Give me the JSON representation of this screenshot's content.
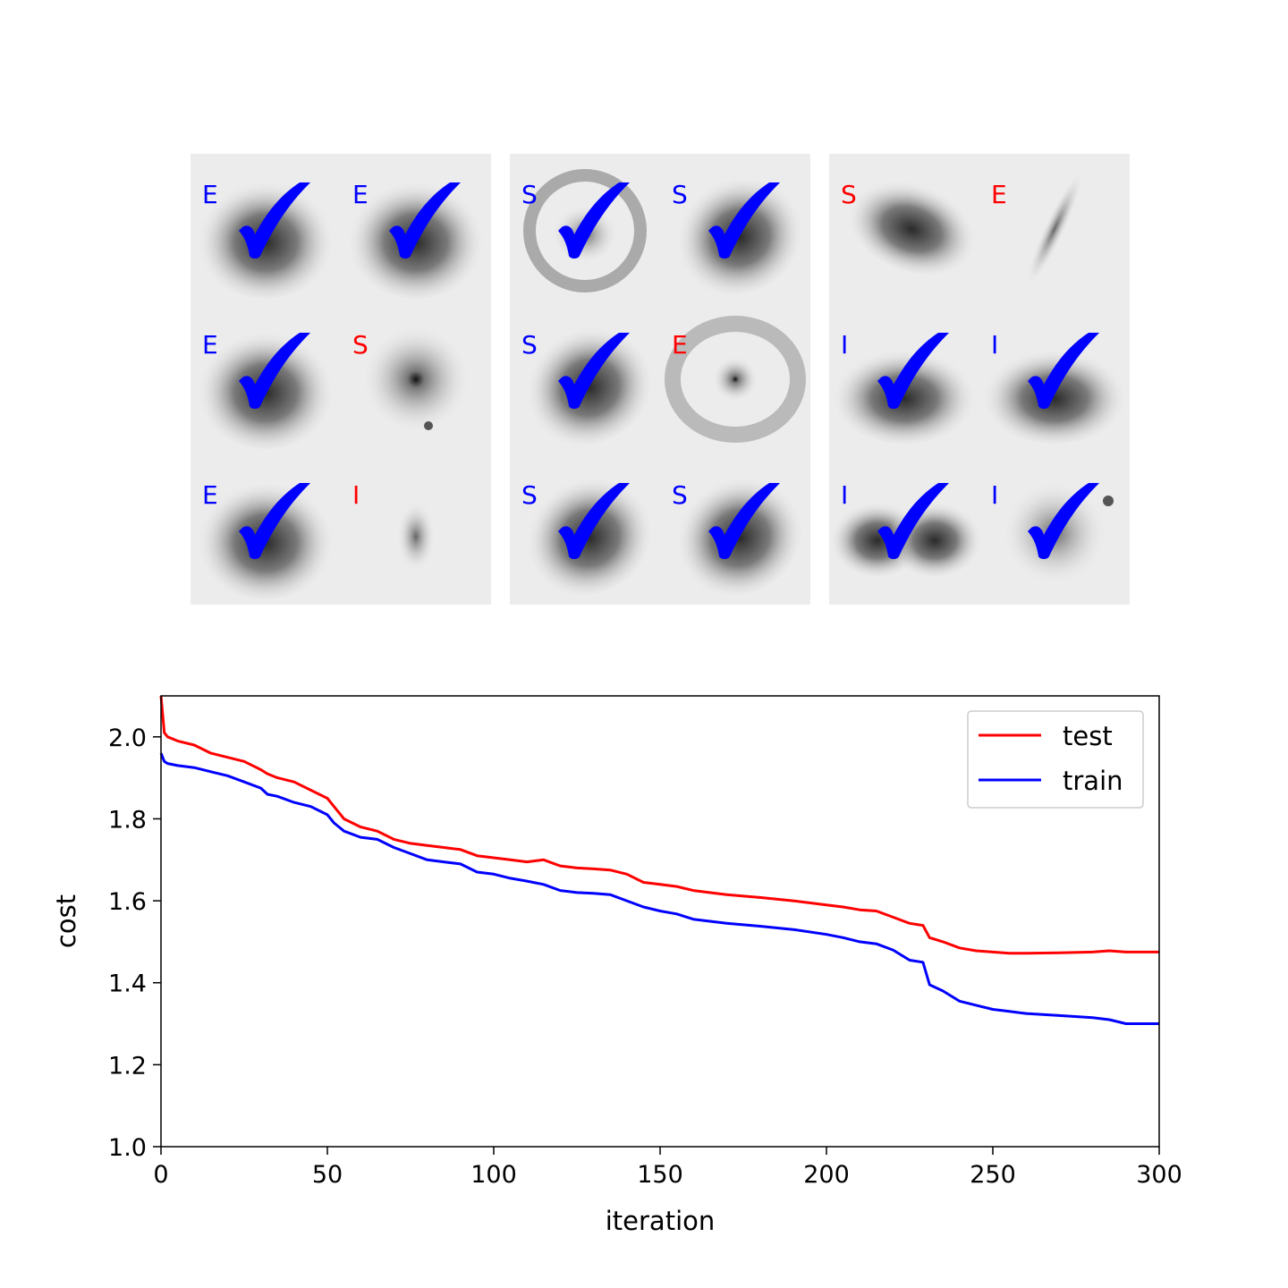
{
  "image_grid": {
    "correct_color": "#0000ff",
    "incorrect_color": "#ff0000",
    "rows": [
      [
        {
          "label": "E",
          "correct": true,
          "galaxy": "elliptical"
        },
        {
          "label": "E",
          "correct": true,
          "galaxy": "elliptical"
        },
        {
          "label": "S",
          "correct": true,
          "galaxy": "ring-spiral"
        },
        {
          "label": "S",
          "correct": true,
          "galaxy": "spiral"
        },
        {
          "label": "S",
          "correct": false,
          "galaxy": "elongated"
        },
        {
          "label": "E",
          "correct": false,
          "galaxy": "edge-on"
        }
      ],
      [
        {
          "label": "E",
          "correct": true,
          "galaxy": "elliptical"
        },
        {
          "label": "S",
          "correct": false,
          "galaxy": "compact"
        },
        {
          "label": "S",
          "correct": true,
          "galaxy": "spiral"
        },
        {
          "label": "E",
          "correct": false,
          "galaxy": "barred-spiral"
        },
        {
          "label": "I",
          "correct": true,
          "galaxy": "diffuse"
        },
        {
          "label": "I",
          "correct": true,
          "galaxy": "diffuse"
        }
      ],
      [
        {
          "label": "E",
          "correct": true,
          "galaxy": "elliptical"
        },
        {
          "label": "I",
          "correct": false,
          "galaxy": "faint"
        },
        {
          "label": "S",
          "correct": true,
          "galaxy": "spiral"
        },
        {
          "label": "S",
          "correct": true,
          "galaxy": "spiral"
        },
        {
          "label": "I",
          "correct": true,
          "galaxy": "double"
        },
        {
          "label": "I",
          "correct": true,
          "galaxy": "irregular"
        }
      ]
    ]
  },
  "chart_data": {
    "type": "line",
    "xlabel": "iteration",
    "ylabel": "cost",
    "xlim": [
      0,
      300
    ],
    "ylim": [
      1.0,
      2.1
    ],
    "xticks": [
      0,
      50,
      100,
      150,
      200,
      250,
      300
    ],
    "yticks": [
      1.0,
      1.2,
      1.4,
      1.6,
      1.8,
      2.0
    ],
    "ytick_labels": [
      "1.0",
      "1.2",
      "1.4",
      "1.6",
      "1.8",
      "2.0"
    ],
    "legend_position": "top-right",
    "grid": false,
    "series": [
      {
        "name": "test",
        "color": "#ff0000",
        "x": [
          0,
          1,
          2,
          5,
          10,
          15,
          20,
          25,
          30,
          32,
          35,
          40,
          45,
          50,
          52,
          55,
          60,
          65,
          70,
          75,
          80,
          85,
          90,
          95,
          100,
          105,
          110,
          115,
          120,
          125,
          130,
          135,
          140,
          145,
          150,
          155,
          160,
          170,
          180,
          190,
          200,
          205,
          210,
          215,
          220,
          225,
          229,
          231,
          235,
          240,
          245,
          250,
          255,
          260,
          270,
          280,
          285,
          290,
          300
        ],
        "y": [
          2.1,
          2.01,
          2.0,
          1.99,
          1.98,
          1.96,
          1.95,
          1.94,
          1.92,
          1.91,
          1.9,
          1.89,
          1.87,
          1.85,
          1.83,
          1.8,
          1.78,
          1.77,
          1.75,
          1.74,
          1.735,
          1.73,
          1.725,
          1.71,
          1.705,
          1.7,
          1.695,
          1.7,
          1.685,
          1.68,
          1.678,
          1.675,
          1.665,
          1.645,
          1.64,
          1.635,
          1.625,
          1.615,
          1.608,
          1.6,
          1.59,
          1.585,
          1.578,
          1.575,
          1.56,
          1.545,
          1.54,
          1.51,
          1.5,
          1.485,
          1.478,
          1.475,
          1.472,
          1.472,
          1.473,
          1.475,
          1.478,
          1.475,
          1.475
        ]
      },
      {
        "name": "train",
        "color": "#0000ff",
        "x": [
          0,
          1,
          2,
          5,
          10,
          15,
          20,
          25,
          30,
          32,
          35,
          40,
          45,
          50,
          52,
          55,
          60,
          65,
          70,
          75,
          80,
          85,
          90,
          95,
          100,
          105,
          110,
          115,
          120,
          125,
          130,
          135,
          140,
          145,
          150,
          155,
          160,
          170,
          180,
          190,
          200,
          205,
          210,
          215,
          220,
          225,
          229,
          231,
          235,
          240,
          245,
          250,
          255,
          260,
          270,
          280,
          285,
          290,
          300
        ],
        "y": [
          1.96,
          1.94,
          1.935,
          1.93,
          1.925,
          1.915,
          1.905,
          1.89,
          1.875,
          1.86,
          1.855,
          1.84,
          1.83,
          1.81,
          1.79,
          1.77,
          1.755,
          1.75,
          1.73,
          1.715,
          1.7,
          1.695,
          1.69,
          1.67,
          1.665,
          1.655,
          1.648,
          1.64,
          1.625,
          1.62,
          1.618,
          1.615,
          1.6,
          1.585,
          1.575,
          1.568,
          1.555,
          1.545,
          1.538,
          1.53,
          1.518,
          1.51,
          1.5,
          1.495,
          1.48,
          1.455,
          1.45,
          1.395,
          1.38,
          1.355,
          1.345,
          1.335,
          1.33,
          1.325,
          1.32,
          1.315,
          1.31,
          1.3,
          1.3
        ]
      }
    ]
  }
}
